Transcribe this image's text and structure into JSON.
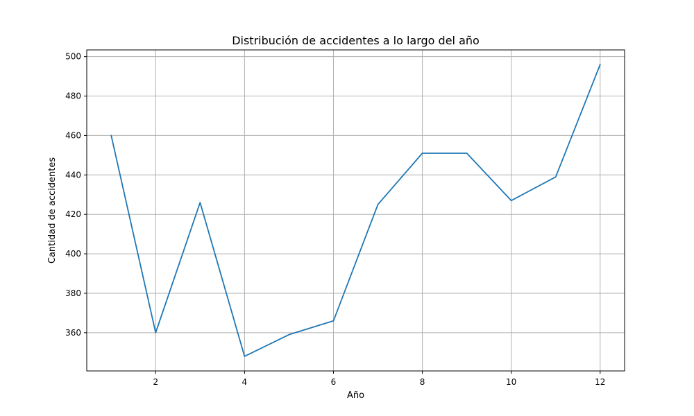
{
  "chart_data": {
    "type": "line",
    "title": "Distribución de accidentes a lo largo del año",
    "xlabel": "Año",
    "ylabel": "Cantidad de accidentes",
    "x": [
      1,
      2,
      3,
      4,
      5,
      6,
      7,
      8,
      9,
      10,
      11,
      12
    ],
    "series": [
      {
        "values": [
          460,
          360,
          426,
          348,
          359,
          366,
          425,
          451,
          451,
          427,
          439,
          496
        ],
        "color": "#1f77b4"
      }
    ],
    "xlim": [
      0.45,
      12.55
    ],
    "ylim": [
      340.6,
      503.4
    ],
    "xticks": [
      2,
      4,
      6,
      8,
      10,
      12
    ],
    "yticks": [
      360,
      380,
      400,
      420,
      440,
      460,
      480,
      500
    ],
    "grid": true
  }
}
